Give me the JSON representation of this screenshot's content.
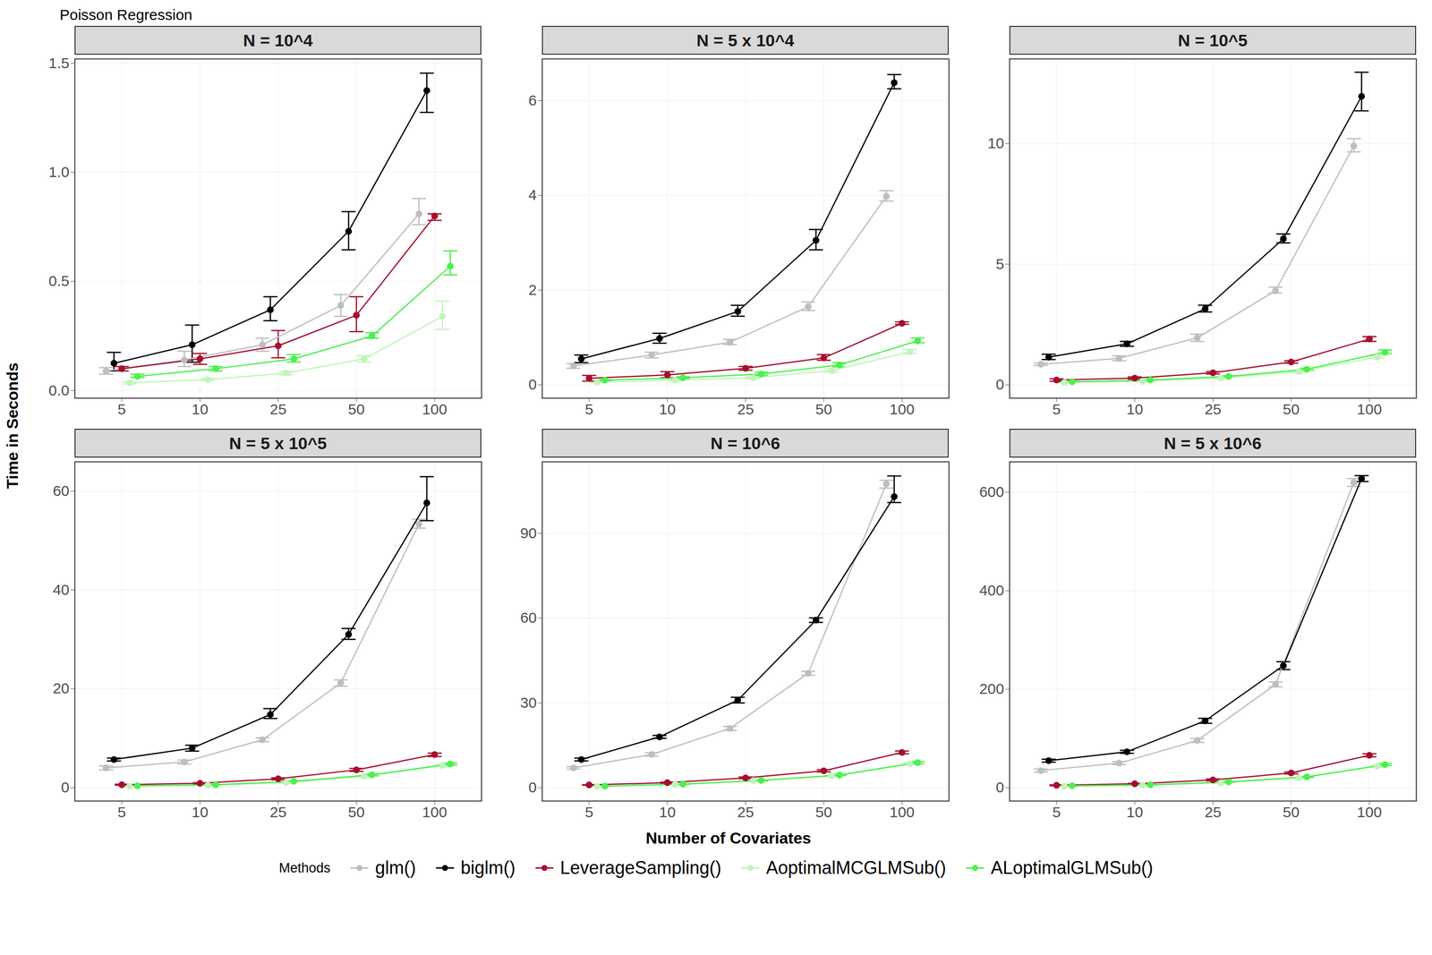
{
  "chart_data": {
    "type": "line",
    "title": "Poisson Regression",
    "x_label": "Number of Covariates",
    "y_label": "Time in Seconds",
    "legend_title": "Methods",
    "legend": "bottom",
    "grid": true,
    "marker": "circle",
    "categories": [
      5,
      10,
      25,
      50,
      100
    ],
    "series": [
      {
        "name": "glm()",
        "color": "#bebebe"
      },
      {
        "name": "biglm()",
        "color": "#000000"
      },
      {
        "name": "LeverageSampling()",
        "color": "#a50f2d"
      },
      {
        "name": "AoptimalMCGLMSub()",
        "color": "#bff5b9"
      },
      {
        "name": "ALoptimalGLMSub()",
        "color": "#4cf04c"
      }
    ],
    "panels": [
      {
        "title": "N = 10^4",
        "ylim": [
          -0.035,
          1.52
        ],
        "yticks": [
          {
            "value": 0,
            "label": "0.0"
          },
          {
            "value": 0.5,
            "label": "0.5"
          },
          {
            "value": 1,
            "label": "1.0"
          },
          {
            "value": 1.5,
            "label": "1.5"
          }
        ],
        "series": [
          {
            "name": "glm()",
            "values": [
              0.09,
              0.14,
              0.21,
              0.39,
              0.81
            ],
            "error_low": [
              0.075,
              0.11,
              0.18,
              0.34,
              0.76
            ],
            "error_high": [
              0.105,
              0.18,
              0.24,
              0.44,
              0.88
            ]
          },
          {
            "name": "biglm()",
            "values": [
              0.125,
              0.21,
              0.37,
              0.73,
              1.375
            ],
            "error_low": [
              0.09,
              0.13,
              0.32,
              0.645,
              1.275
            ],
            "error_high": [
              0.175,
              0.3,
              0.43,
              0.82,
              1.455
            ]
          },
          {
            "name": "LeverageSampling()",
            "values": [
              0.1,
              0.145,
              0.205,
              0.345,
              0.8
            ],
            "error_low": [
              0.09,
              0.12,
              0.15,
              0.27,
              0.78
            ],
            "error_high": [
              0.11,
              0.17,
              0.275,
              0.43,
              0.81
            ]
          },
          {
            "name": "AoptimalMCGLMSub()",
            "values": [
              0.035,
              0.05,
              0.08,
              0.145,
              0.34
            ],
            "error_low": [
              0.03,
              0.045,
              0.072,
              0.13,
              0.28
            ],
            "error_high": [
              0.04,
              0.056,
              0.088,
              0.16,
              0.41
            ]
          },
          {
            "name": "ALoptimalGLMSub()",
            "values": [
              0.065,
              0.1,
              0.145,
              0.25,
              0.57
            ],
            "error_low": [
              0.06,
              0.09,
              0.13,
              0.24,
              0.53
            ],
            "error_high": [
              0.075,
              0.11,
              0.165,
              0.265,
              0.64
            ]
          }
        ]
      },
      {
        "title": "N = 5 x 10^4",
        "ylim": [
          -0.28,
          6.88
        ],
        "yticks": [
          0,
          2,
          4,
          6
        ],
        "series": [
          {
            "name": "glm()",
            "values": [
              0.4,
              0.63,
              0.9,
              1.65,
              3.98
            ],
            "error_low": [
              0.35,
              0.57,
              0.85,
              1.57,
              3.88
            ],
            "error_high": [
              0.45,
              0.69,
              0.96,
              1.75,
              4.1
            ]
          },
          {
            "name": "biglm()",
            "values": [
              0.55,
              0.98,
              1.55,
              3.05,
              6.38
            ],
            "error_low": [
              0.47,
              0.88,
              1.45,
              2.85,
              6.25
            ],
            "error_high": [
              0.63,
              1.09,
              1.68,
              3.28,
              6.55
            ]
          },
          {
            "name": "LeverageSampling()",
            "values": [
              0.14,
              0.21,
              0.35,
              0.57,
              1.3
            ],
            "error_low": [
              0.08,
              0.15,
              0.31,
              0.52,
              1.28
            ],
            "error_high": [
              0.2,
              0.28,
              0.39,
              0.64,
              1.33
            ]
          },
          {
            "name": "AoptimalMCGLMSub()",
            "values": [
              0.06,
              0.1,
              0.15,
              0.3,
              0.7
            ],
            "error_low": [
              0.05,
              0.09,
              0.13,
              0.27,
              0.66
            ],
            "error_high": [
              0.07,
              0.11,
              0.17,
              0.33,
              0.75
            ]
          },
          {
            "name": "ALoptimalGLMSub()",
            "values": [
              0.1,
              0.15,
              0.23,
              0.42,
              0.93
            ],
            "error_low": [
              0.09,
              0.13,
              0.2,
              0.38,
              0.89
            ],
            "error_high": [
              0.11,
              0.17,
              0.27,
              0.47,
              0.99
            ]
          }
        ]
      },
      {
        "title": "N = 10^5",
        "ylim": [
          -0.55,
          13.5
        ],
        "yticks": [
          0,
          5,
          10
        ],
        "series": [
          {
            "name": "glm()",
            "values": [
              0.85,
              1.1,
              1.95,
              3.9,
              9.9
            ],
            "error_low": [
              0.8,
              1.0,
              1.8,
              3.8,
              9.65
            ],
            "error_high": [
              0.9,
              1.2,
              2.1,
              4.05,
              10.2
            ]
          },
          {
            "name": "biglm()",
            "values": [
              1.15,
              1.7,
              3.15,
              6.05,
              11.95
            ],
            "error_low": [
              1.05,
              1.6,
              3.02,
              5.88,
              11.35
            ],
            "error_high": [
              1.27,
              1.8,
              3.3,
              6.25,
              12.95
            ]
          },
          {
            "name": "LeverageSampling()",
            "values": [
              0.2,
              0.28,
              0.5,
              0.95,
              1.9
            ],
            "error_low": [
              0.15,
              0.23,
              0.45,
              0.9,
              1.8
            ],
            "error_high": [
              0.25,
              0.33,
              0.55,
              1.0,
              2.0
            ]
          },
          {
            "name": "AoptimalMCGLMSub()",
            "values": [
              0.1,
              0.15,
              0.28,
              0.55,
              1.15
            ],
            "error_low": [
              0.08,
              0.13,
              0.25,
              0.52,
              1.1
            ],
            "error_high": [
              0.12,
              0.17,
              0.31,
              0.58,
              1.2
            ]
          },
          {
            "name": "ALoptimalGLMSub()",
            "values": [
              0.13,
              0.2,
              0.35,
              0.65,
              1.35
            ],
            "error_low": [
              0.11,
              0.18,
              0.32,
              0.61,
              1.3
            ],
            "error_high": [
              0.15,
              0.22,
              0.38,
              0.69,
              1.45
            ]
          }
        ]
      },
      {
        "title": "N = 5 x 10^5",
        "ylim": [
          -2.7,
          65.9
        ],
        "yticks": [
          0,
          20,
          40,
          60
        ],
        "series": [
          {
            "name": "glm()",
            "values": [
              4.0,
              5.2,
              9.7,
              21.2,
              53.3
            ],
            "error_low": [
              3.6,
              4.8,
              9.3,
              20.5,
              52.5
            ],
            "error_high": [
              4.4,
              5.6,
              10.1,
              21.8,
              54.3
            ]
          },
          {
            "name": "biglm()",
            "values": [
              5.7,
              8.0,
              14.8,
              31.0,
              57.6
            ],
            "error_low": [
              5.4,
              7.4,
              14.0,
              30.0,
              54.0
            ],
            "error_high": [
              6.0,
              8.6,
              16.0,
              32.2,
              62.9
            ]
          },
          {
            "name": "LeverageSampling()",
            "values": [
              0.6,
              0.9,
              1.8,
              3.6,
              6.7
            ],
            "error_low": [
              0.5,
              0.8,
              1.6,
              3.3,
              6.3
            ],
            "error_high": [
              0.7,
              1.0,
              2.0,
              3.9,
              7.0
            ]
          },
          {
            "name": "AoptimalMCGLMSub()",
            "values": [
              0.3,
              0.5,
              1.0,
              2.3,
              4.5
            ],
            "error_low": [
              0.25,
              0.45,
              0.9,
              2.1,
              4.3
            ],
            "error_high": [
              0.35,
              0.55,
              1.1,
              2.5,
              4.7
            ]
          },
          {
            "name": "ALoptimalGLMSub()",
            "values": [
              0.4,
              0.6,
              1.3,
              2.6,
              4.8
            ],
            "error_low": [
              0.35,
              0.55,
              1.2,
              2.4,
              4.6
            ],
            "error_high": [
              0.45,
              0.65,
              1.4,
              2.8,
              5.0
            ]
          }
        ]
      },
      {
        "title": "N = 10^6",
        "ylim": [
          -4.7,
          115.3
        ],
        "yticks": [
          0,
          30,
          60,
          90
        ],
        "series": [
          {
            "name": "glm()",
            "values": [
              7.0,
              11.8,
              21.0,
              40.5,
              107.5
            ],
            "error_low": [
              6.6,
              11.2,
              20.3,
              39.8,
              106.0
            ],
            "error_high": [
              7.4,
              12.4,
              21.7,
              41.2,
              108.8
            ]
          },
          {
            "name": "biglm()",
            "values": [
              10.0,
              18.0,
              31.0,
              59.3,
              103.0
            ],
            "error_low": [
              9.5,
              17.5,
              30.0,
              58.5,
              100.9
            ],
            "error_high": [
              10.5,
              18.5,
              32.0,
              60.1,
              110.3
            ]
          },
          {
            "name": "LeverageSampling()",
            "values": [
              1.0,
              1.8,
              3.5,
              6.0,
              12.5
            ],
            "error_low": [
              0.9,
              1.6,
              3.2,
              5.6,
              12.0
            ],
            "error_high": [
              1.1,
              2.0,
              3.8,
              6.4,
              13.0
            ]
          },
          {
            "name": "AoptimalMCGLMSub()",
            "values": [
              0.5,
              1.2,
              2.5,
              4.2,
              8.5
            ],
            "error_low": [
              0.45,
              1.1,
              2.3,
              4.0,
              8.2
            ],
            "error_high": [
              0.55,
              1.3,
              2.7,
              4.4,
              8.8
            ]
          },
          {
            "name": "ALoptimalGLMSub()",
            "values": [
              0.6,
              1.3,
              2.6,
              4.5,
              8.9
            ],
            "error_low": [
              0.55,
              1.2,
              2.4,
              4.3,
              8.5
            ],
            "error_high": [
              0.65,
              1.4,
              2.8,
              4.7,
              9.3
            ]
          }
        ]
      },
      {
        "title": "N = 5 x 10^6",
        "ylim": [
          -27,
          662
        ],
        "yticks": [
          0,
          200,
          400,
          600
        ],
        "series": [
          {
            "name": "glm()",
            "values": [
              35,
              50,
              96,
              210,
              620
            ],
            "error_low": [
              32,
              47,
              92,
              205,
              612
            ],
            "error_high": [
              38,
              53,
              100,
              215,
              628
            ]
          },
          {
            "name": "biglm()",
            "values": [
              55,
              73,
              136,
              248,
              628
            ],
            "error_low": [
              52,
              70,
              131,
              240,
              622
            ],
            "error_high": [
              58,
              76,
              141,
              256,
              634
            ]
          },
          {
            "name": "LeverageSampling()",
            "values": [
              5,
              8,
              16,
              30,
              66
            ],
            "error_low": [
              4,
              7,
              14,
              28,
              63
            ],
            "error_high": [
              6,
              9,
              18,
              32,
              69
            ]
          },
          {
            "name": "AoptimalMCGLMSub()",
            "values": [
              3,
              5,
              10,
              20,
              44
            ],
            "error_low": [
              2.5,
              4.5,
              9,
              19,
              42
            ],
            "error_high": [
              3.5,
              5.5,
              11,
              21,
              46
            ]
          },
          {
            "name": "ALoptimalGLMSub()",
            "values": [
              4,
              6,
              12,
              22,
              47
            ],
            "error_low": [
              3.5,
              5.5,
              11,
              21,
              45
            ],
            "error_high": [
              4.5,
              6.5,
              13,
              23,
              49
            ]
          }
        ]
      }
    ]
  }
}
